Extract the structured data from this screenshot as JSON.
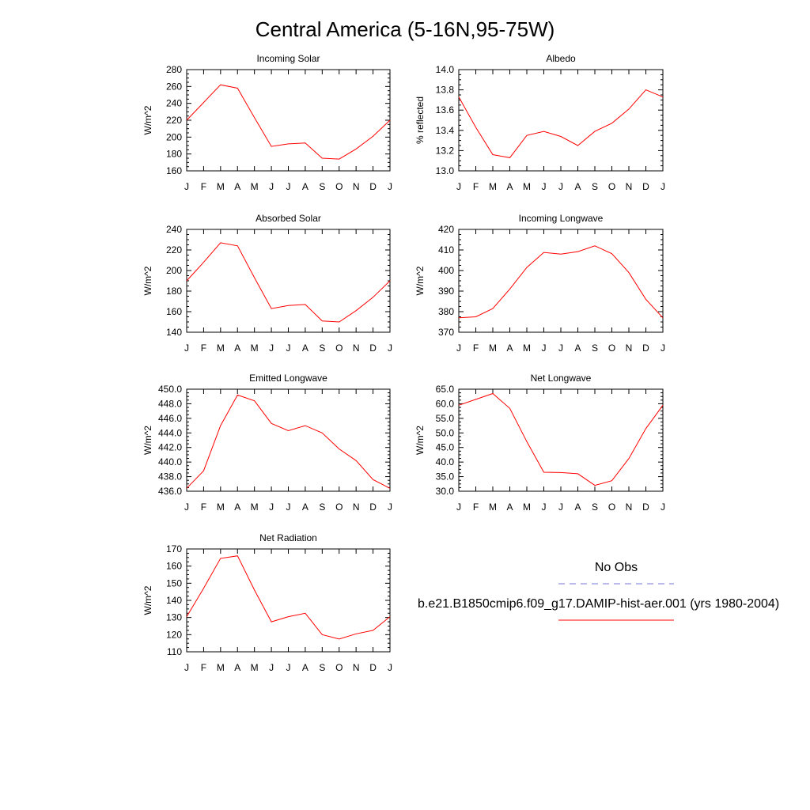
{
  "title": "Central America (5-16N,95-75W)",
  "legend": {
    "obs_label": "No Obs",
    "obs_color": "#7777dd",
    "model_label": "b.e21.B1850cmip6.f09_g17.DAMIP-hist-aer.001 (yrs 1980-2004)",
    "model_color": "#ff0000"
  },
  "chart_data": [
    {
      "type": "line",
      "title": "Incoming Solar",
      "ylabel": "W/m^2",
      "x": [
        "J",
        "F",
        "M",
        "A",
        "M",
        "J",
        "J",
        "A",
        "S",
        "O",
        "N",
        "D",
        "J"
      ],
      "ylim": [
        160,
        280
      ],
      "yticks": [
        "160",
        "180",
        "200",
        "220",
        "240",
        "260",
        "280"
      ],
      "series": [
        {
          "values": [
            220,
            241,
            262,
            258,
            223,
            189,
            192,
            193,
            175,
            174,
            186,
            201,
            220
          ]
        }
      ]
    },
    {
      "type": "line",
      "title": "Albedo",
      "ylabel": "% reflected",
      "x": [
        "J",
        "F",
        "M",
        "A",
        "M",
        "J",
        "J",
        "A",
        "S",
        "O",
        "N",
        "D",
        "J"
      ],
      "ylim": [
        13.0,
        14.0
      ],
      "yticks": [
        "13.0",
        "13.2",
        "13.4",
        "13.6",
        "13.8",
        "14.0"
      ],
      "series": [
        {
          "values": [
            13.73,
            13.43,
            13.16,
            13.13,
            13.35,
            13.39,
            13.34,
            13.25,
            13.39,
            13.47,
            13.61,
            13.8,
            13.73
          ]
        }
      ]
    },
    {
      "type": "line",
      "title": "Absorbed Solar",
      "ylabel": "W/m^2",
      "x": [
        "J",
        "F",
        "M",
        "A",
        "M",
        "J",
        "J",
        "A",
        "S",
        "O",
        "N",
        "D",
        "J"
      ],
      "ylim": [
        140,
        240
      ],
      "yticks": [
        "140",
        "160",
        "180",
        "200",
        "220",
        "240"
      ],
      "series": [
        {
          "values": [
            190,
            208,
            227,
            224,
            193,
            163,
            166,
            167,
            151,
            150,
            161,
            174,
            190
          ]
        }
      ]
    },
    {
      "type": "line",
      "title": "Incoming Longwave",
      "ylabel": "W/m^2",
      "x": [
        "J",
        "F",
        "M",
        "A",
        "M",
        "J",
        "J",
        "A",
        "S",
        "O",
        "N",
        "D",
        "J"
      ],
      "ylim": [
        370,
        420
      ],
      "yticks": [
        "370",
        "380",
        "390",
        "400",
        "410",
        "420"
      ],
      "series": [
        {
          "values": [
            377,
            377.5,
            381.5,
            391,
            401.5,
            408.8,
            408,
            409.2,
            412,
            408.2,
            399,
            386,
            377
          ]
        }
      ]
    },
    {
      "type": "line",
      "title": "Emitted Longwave",
      "ylabel": "W/m^2",
      "x": [
        "J",
        "F",
        "M",
        "A",
        "M",
        "J",
        "J",
        "A",
        "S",
        "O",
        "N",
        "D",
        "J"
      ],
      "ylim": [
        436.0,
        450.0
      ],
      "yticks": [
        "436.0",
        "438.0",
        "440.0",
        "442.0",
        "444.0",
        "446.0",
        "448.0",
        "450.0"
      ],
      "series": [
        {
          "values": [
            436.4,
            438.8,
            445.0,
            449.2,
            448.4,
            445.3,
            444.3,
            445.0,
            444.0,
            441.8,
            440.2,
            437.6,
            436.4
          ]
        }
      ]
    },
    {
      "type": "line",
      "title": "Net Longwave",
      "ylabel": "W/m^2",
      "x": [
        "J",
        "F",
        "M",
        "A",
        "M",
        "J",
        "J",
        "A",
        "S",
        "O",
        "N",
        "D",
        "J"
      ],
      "ylim": [
        30.0,
        65.0
      ],
      "yticks": [
        "30.0",
        "35.0",
        "40.0",
        "45.0",
        "50.0",
        "55.0",
        "60.0",
        "65.0"
      ],
      "series": [
        {
          "values": [
            59.5,
            61.5,
            63.5,
            58.4,
            47.0,
            36.5,
            36.4,
            36.0,
            32.0,
            33.6,
            41.2,
            51.5,
            59.5
          ]
        }
      ]
    },
    {
      "type": "line",
      "title": "Net Radiation",
      "ylabel": "W/m^2",
      "x": [
        "J",
        "F",
        "M",
        "A",
        "M",
        "J",
        "J",
        "A",
        "S",
        "O",
        "N",
        "D",
        "J"
      ],
      "ylim": [
        110,
        170
      ],
      "yticks": [
        "110",
        "120",
        "130",
        "140",
        "150",
        "160",
        "170"
      ],
      "series": [
        {
          "values": [
            130.5,
            147,
            164.5,
            166,
            146,
            127.5,
            130.5,
            132.5,
            120,
            117.5,
            120.5,
            122.5,
            130.5
          ]
        }
      ]
    }
  ]
}
